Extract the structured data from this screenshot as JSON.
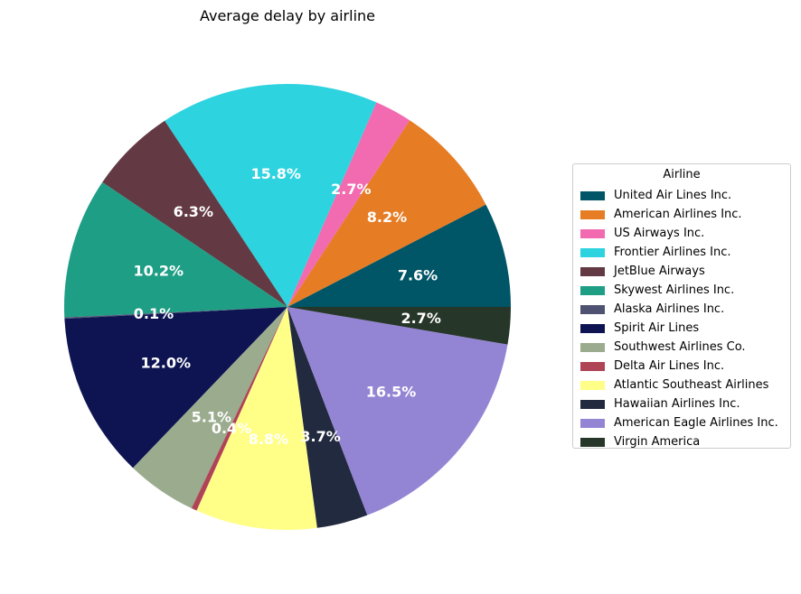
{
  "chart_data": {
    "type": "pie",
    "title": "Average delay by airline",
    "legend_title": "Airline",
    "legend_position": "right",
    "start_angle_deg": 0,
    "direction": "counterclockwise",
    "slices": [
      {
        "label": "United Air Lines Inc.",
        "value": 7.6,
        "pct_label": "7.6%",
        "color": "#005566"
      },
      {
        "label": "American Airlines Inc.",
        "value": 8.2,
        "pct_label": "8.2%",
        "color": "#e67c24"
      },
      {
        "label": "US Airways Inc.",
        "value": 2.7,
        "pct_label": "2.7%",
        "color": "#f26aaf"
      },
      {
        "label": "Frontier Airlines Inc.",
        "value": 15.8,
        "pct_label": "15.8%",
        "color": "#2ed3e0"
      },
      {
        "label": "JetBlue Airways",
        "value": 6.3,
        "pct_label": "6.3%",
        "color": "#633a43"
      },
      {
        "label": "Skywest Airlines Inc.",
        "value": 10.2,
        "pct_label": "10.2%",
        "color": "#1e9e85"
      },
      {
        "label": "Alaska Airlines Inc.",
        "value": 0.1,
        "pct_label": "0.1%",
        "color": "#4f5271"
      },
      {
        "label": "Spirit Air Lines",
        "value": 12.0,
        "pct_label": "12.0%",
        "color": "#0e1452"
      },
      {
        "label": "Southwest Airlines Co.",
        "value": 5.1,
        "pct_label": "5.1%",
        "color": "#9aab8e"
      },
      {
        "label": "Delta Air Lines Inc.",
        "value": 0.4,
        "pct_label": "0.4%",
        "color": "#b04457"
      },
      {
        "label": "Atlantic Southeast Airlines",
        "value": 8.8,
        "pct_label": "8.8%",
        "color": "#ffff88"
      },
      {
        "label": "Hawaiian Airlines Inc.",
        "value": 3.7,
        "pct_label": "3.7%",
        "color": "#222a40"
      },
      {
        "label": "American Eagle Airlines Inc.",
        "value": 16.5,
        "pct_label": "16.5%",
        "color": "#9485d4"
      },
      {
        "label": "Virgin America",
        "value": 2.7,
        "pct_label": "2.7%",
        "color": "#263629"
      }
    ]
  }
}
